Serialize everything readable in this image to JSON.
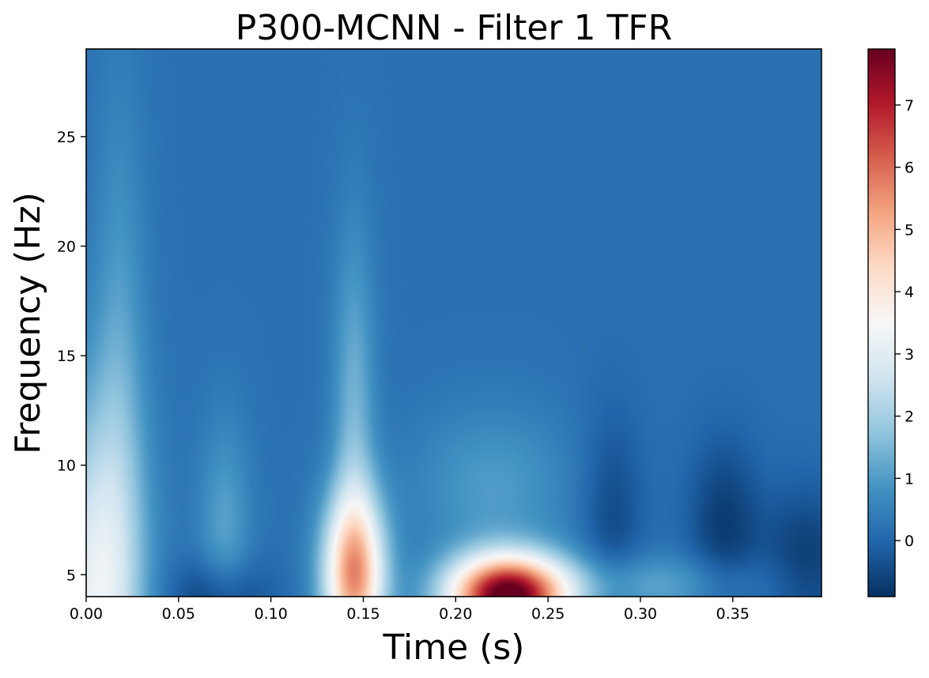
{
  "chart_data": {
    "type": "heatmap",
    "title": "P300-MCNN - Filter 1 TFR",
    "xlabel": "Time (s)",
    "ylabel": "Frequency (Hz)",
    "xlim": [
      0.0,
      0.398
    ],
    "ylim": [
      4.0,
      29.0
    ],
    "x_ticks": [
      0.0,
      0.05,
      0.1,
      0.15,
      0.2,
      0.25,
      0.3,
      0.35
    ],
    "x_tick_labels": [
      "0.00",
      "0.05",
      "0.10",
      "0.15",
      "0.20",
      "0.25",
      "0.30",
      "0.35"
    ],
    "y_ticks": [
      5,
      10,
      15,
      20,
      25
    ],
    "y_tick_labels": [
      "5",
      "10",
      "15",
      "20",
      "25"
    ],
    "colormap": "RdBu_r",
    "color_range": [
      -0.9,
      7.9
    ],
    "colorbar_ticks": [
      0,
      1,
      2,
      3,
      4,
      5,
      6,
      7
    ],
    "colorbar_tick_labels": [
      "0",
      "1",
      "2",
      "3",
      "4",
      "5",
      "6",
      "7"
    ],
    "background_value": 0.2,
    "components": [
      {
        "t": 0.005,
        "f": 4.0,
        "amplitude": 2.9,
        "t_width": 0.018,
        "f_width": 6.0
      },
      {
        "t": 0.018,
        "f": 14.0,
        "amplitude": 0.8,
        "t_width": 0.01,
        "f_width": 9.0
      },
      {
        "t": 0.072,
        "f": 4.0,
        "amplitude": -1.0,
        "t_width": 0.018,
        "f_width": 1.2
      },
      {
        "t": 0.075,
        "f": 7.0,
        "amplitude": 0.9,
        "t_width": 0.01,
        "f_width": 3.5
      },
      {
        "t": 0.145,
        "f": 5.0,
        "amplitude": 4.9,
        "t_width": 0.012,
        "f_width": 2.6
      },
      {
        "t": 0.145,
        "f": 12.0,
        "amplitude": 1.2,
        "t_width": 0.008,
        "f_width": 6.0
      },
      {
        "t": 0.228,
        "f": 4.0,
        "amplitude": 7.8,
        "t_width": 0.022,
        "f_width": 1.3
      },
      {
        "t": 0.22,
        "f": 9.0,
        "amplitude": 0.8,
        "t_width": 0.03,
        "f_width": 2.5
      },
      {
        "t": 0.285,
        "f": 7.5,
        "amplitude": -0.7,
        "t_width": 0.012,
        "f_width": 3.5
      },
      {
        "t": 0.345,
        "f": 7.0,
        "amplitude": -0.9,
        "t_width": 0.014,
        "f_width": 3.0
      },
      {
        "t": 0.39,
        "f": 5.5,
        "amplitude": -0.9,
        "t_width": 0.018,
        "f_width": 2.5
      },
      {
        "t": 0.3,
        "f": 4.5,
        "amplitude": 1.0,
        "t_width": 0.05,
        "f_width": 1.0
      }
    ]
  }
}
